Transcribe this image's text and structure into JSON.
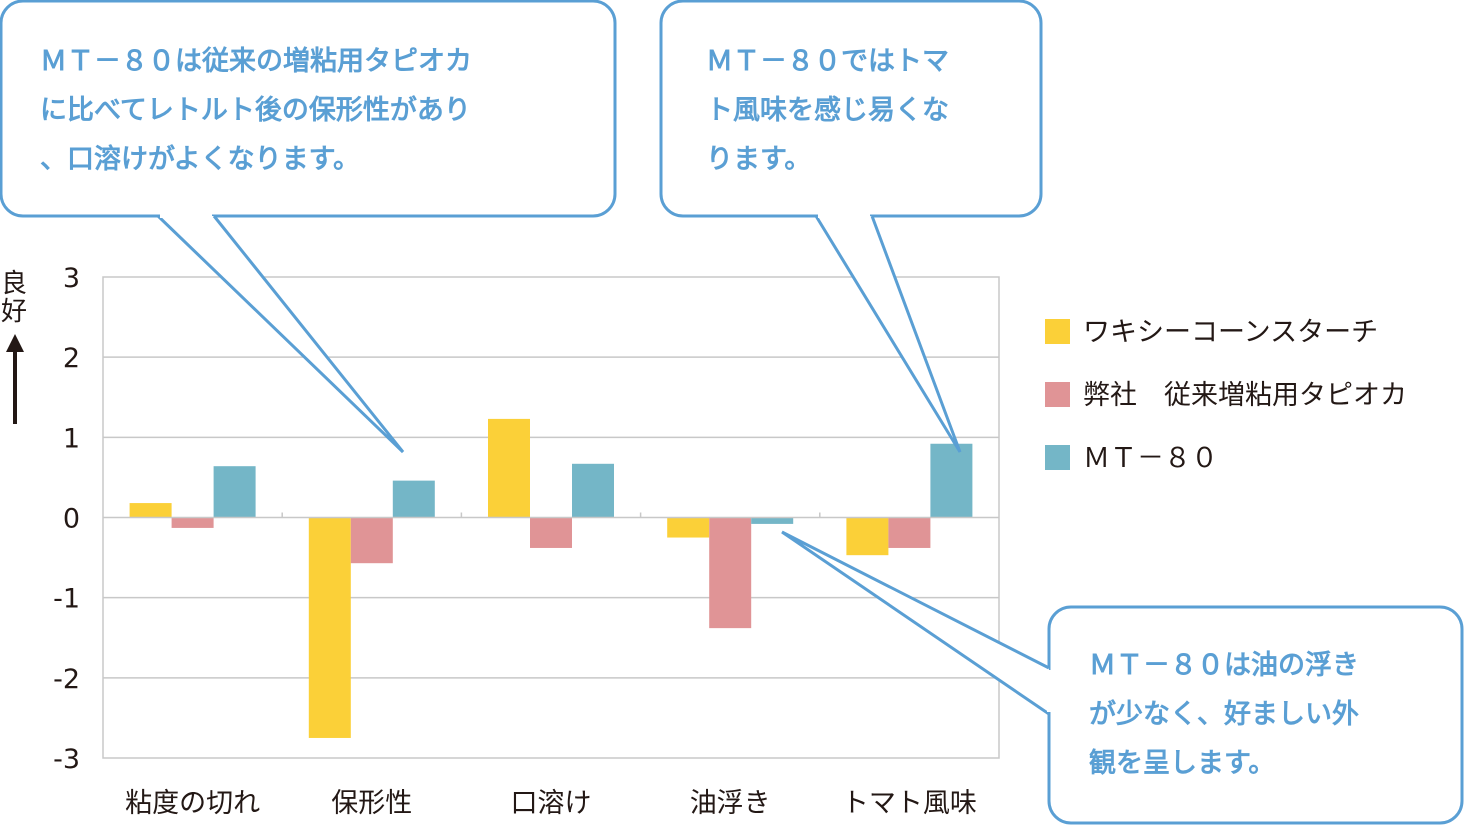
{
  "chart_data": {
    "type": "bar",
    "categories": [
      "粘度の切れ",
      "保形性",
      "口溶け",
      "油浮き",
      "トマト風味"
    ],
    "series": [
      {
        "name": "ワキシーコーンスターチ",
        "color": "#fbd038",
        "values": [
          0.18,
          -2.75,
          1.23,
          -0.25,
          -0.47
        ]
      },
      {
        "name": "弊社　従来増粘用タピオカ",
        "color": "#e09496",
        "values": [
          -0.13,
          -0.57,
          -0.38,
          -1.38,
          -0.38
        ]
      },
      {
        "name": "ＭＴ－８０",
        "color": "#74b6c7",
        "values": [
          0.64,
          0.46,
          0.67,
          -0.08,
          0.92
        ]
      }
    ],
    "ylim": [
      -3,
      3
    ],
    "yticks": [
      "3",
      "2",
      "1",
      "0",
      "-1",
      "-2",
      "-3"
    ],
    "ylabel": "良好",
    "grid": true,
    "legend_position": "right",
    "annotations": [
      {
        "lines": [
          "ＭＴ－８０は従来の増粘用タピオカ",
          "に比べてレトルト後の保形性があり",
          "、口溶けがよくなります。"
        ]
      },
      {
        "lines": [
          "ＭＴ－８０ではトマ",
          "ト風味を感じ易くな",
          "ります。"
        ]
      },
      {
        "lines": [
          "ＭＴ－８０は油の浮き",
          "が少なく、好ましい外",
          "観を呈します。"
        ]
      }
    ],
    "accent_color": "#5a9fd4"
  }
}
